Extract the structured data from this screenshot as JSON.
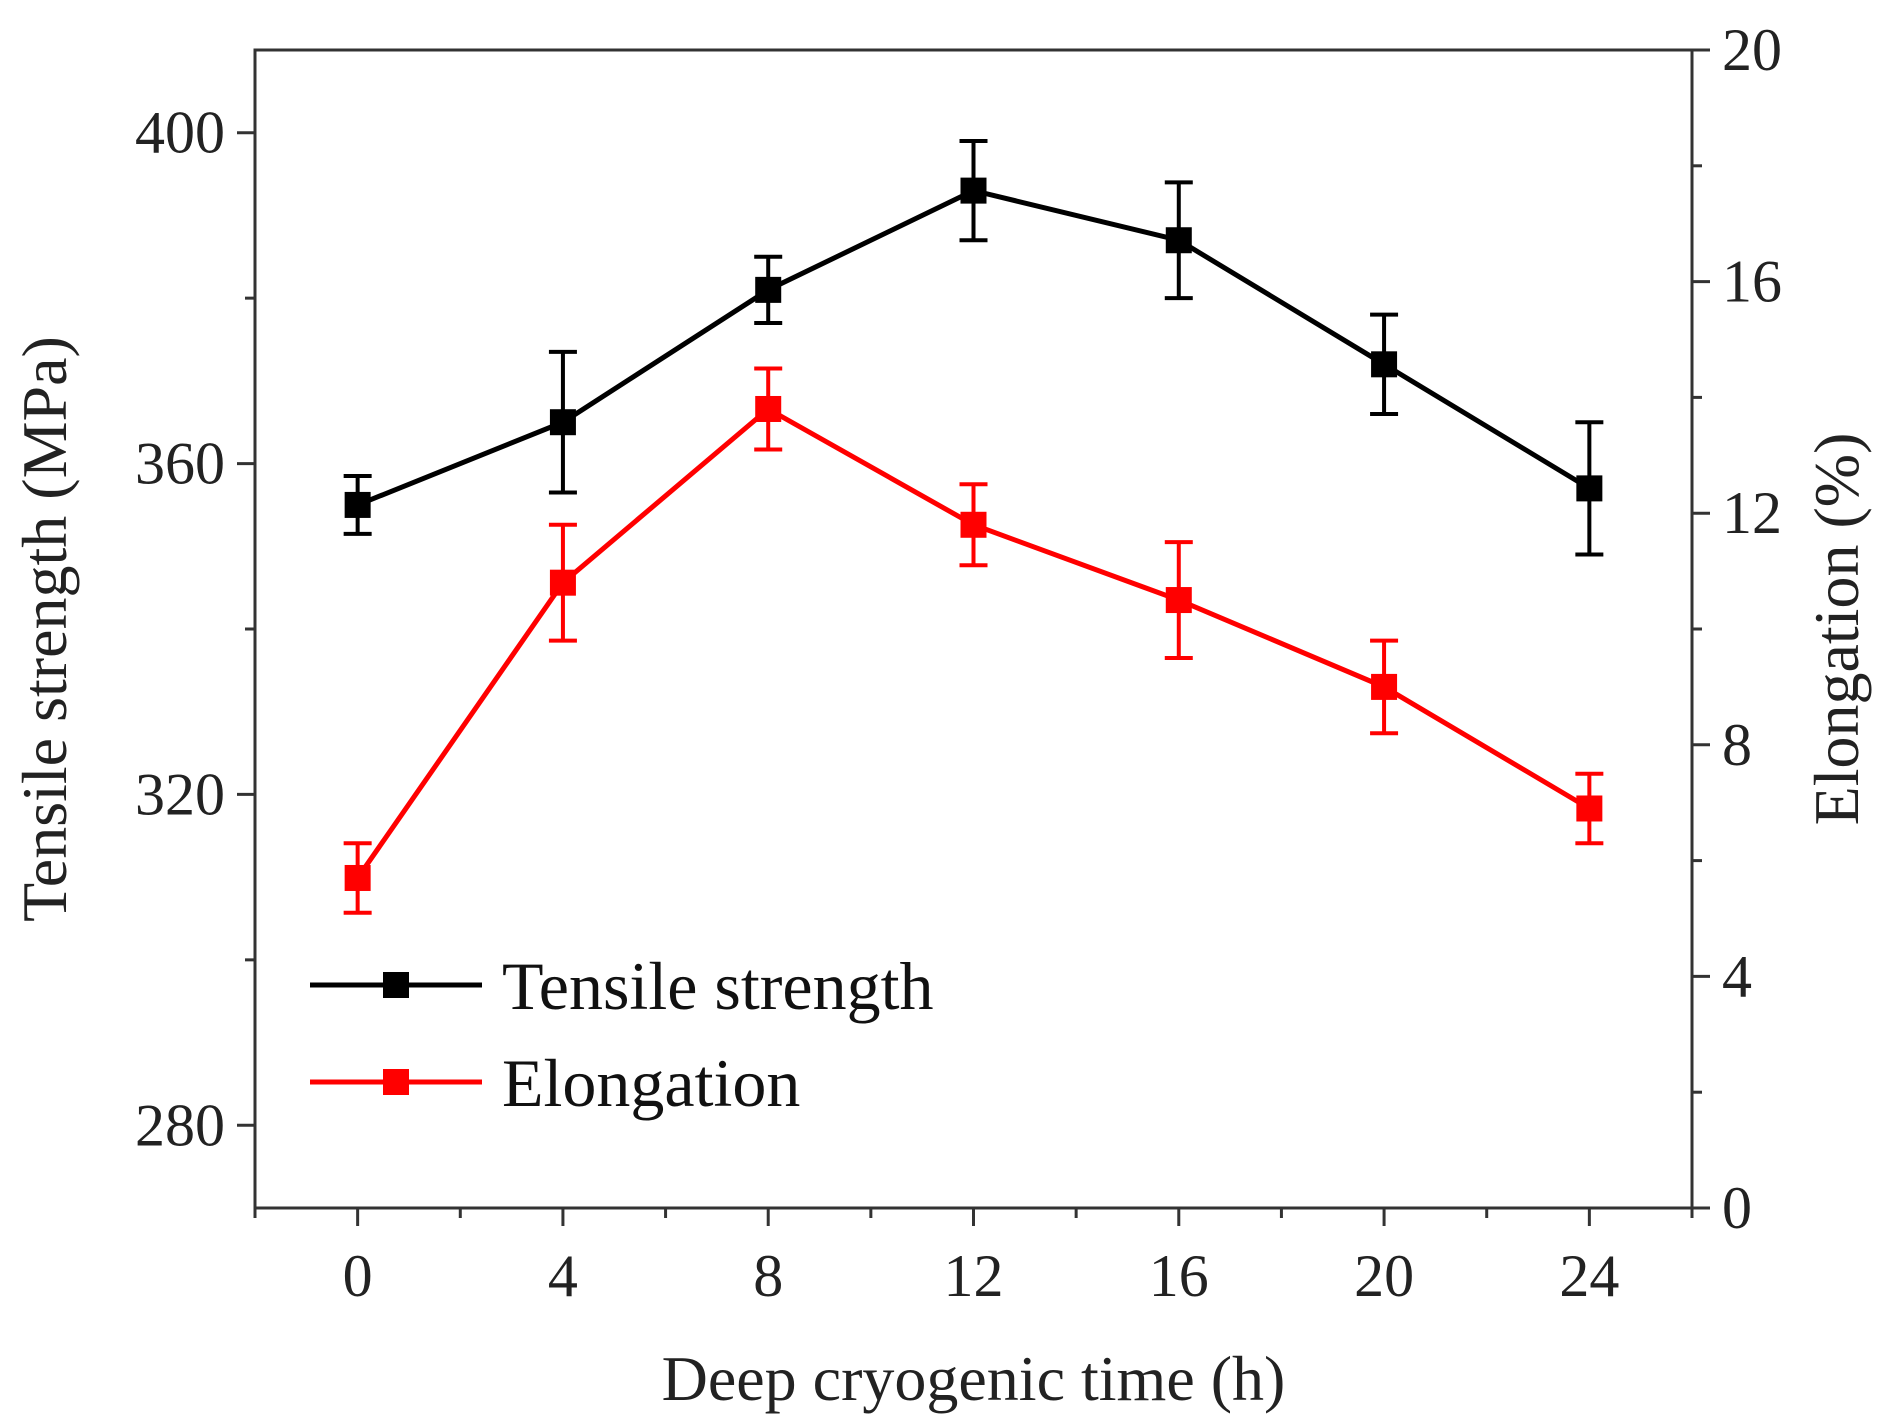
{
  "chart_data": {
    "type": "line",
    "title": "",
    "xlabel": "Deep cryogenic time (h)",
    "ylabel": "Tensile strength (MPa)",
    "y2label": "Elongation (%)",
    "x": [
      0,
      4,
      8,
      12,
      16,
      20,
      24
    ],
    "x_ticks": [
      "0",
      "4",
      "8",
      "12",
      "16",
      "20",
      "24"
    ],
    "xlim": [
      -2,
      26
    ],
    "ylim": [
      270,
      410
    ],
    "y_ticks": [
      "280",
      "320",
      "360",
      "400"
    ],
    "y2lim": [
      0,
      20
    ],
    "y2_ticks": [
      "0",
      "4",
      "8",
      "12",
      "16",
      "20"
    ],
    "grid": false,
    "legend_position": "bottom-left",
    "series": [
      {
        "name": "Tensile strength",
        "axis": "left",
        "color": "#000000",
        "values": [
          355,
          365,
          381,
          393,
          387,
          372,
          357
        ],
        "errors": [
          3.5,
          8.5,
          4,
          6,
          7,
          6,
          8
        ]
      },
      {
        "name": "Elongation",
        "axis": "right",
        "color": "#ff0000",
        "values": [
          5.7,
          10.8,
          13.8,
          11.8,
          10.5,
          9.0,
          6.9
        ],
        "errors": [
          0.6,
          1.0,
          0.7,
          0.7,
          1.0,
          0.8,
          0.6
        ]
      }
    ]
  }
}
